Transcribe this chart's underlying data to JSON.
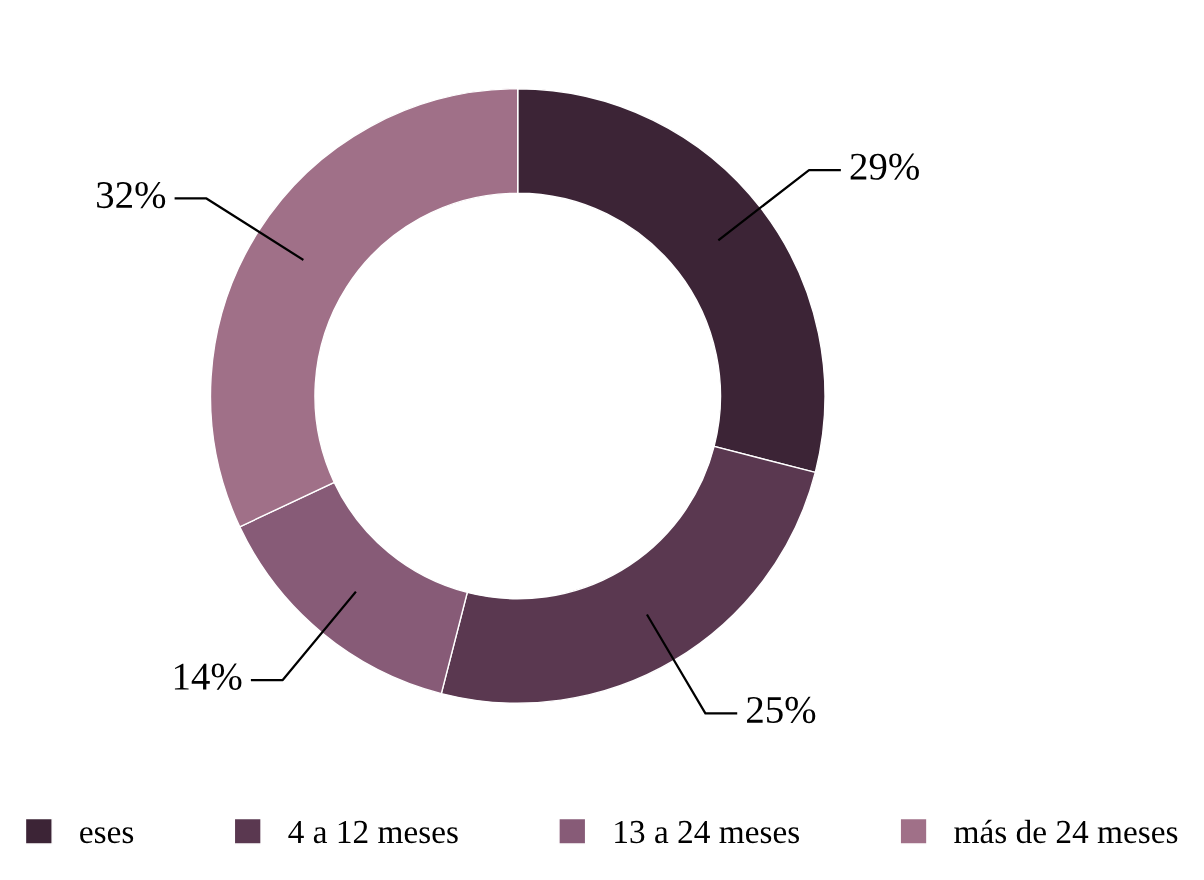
{
  "chart_data": {
    "type": "donut",
    "categories": [
      "eses",
      "4 a 12 meses",
      "13 a 24 meses",
      "más de 24 meses"
    ],
    "values": [
      29,
      25,
      14,
      32
    ],
    "colors": [
      "#3c2436",
      "#5a3850",
      "#875b77",
      "#a07088"
    ],
    "value_labels": [
      "29%",
      "25%",
      "14%",
      "32%"
    ],
    "legend": "bottom"
  }
}
